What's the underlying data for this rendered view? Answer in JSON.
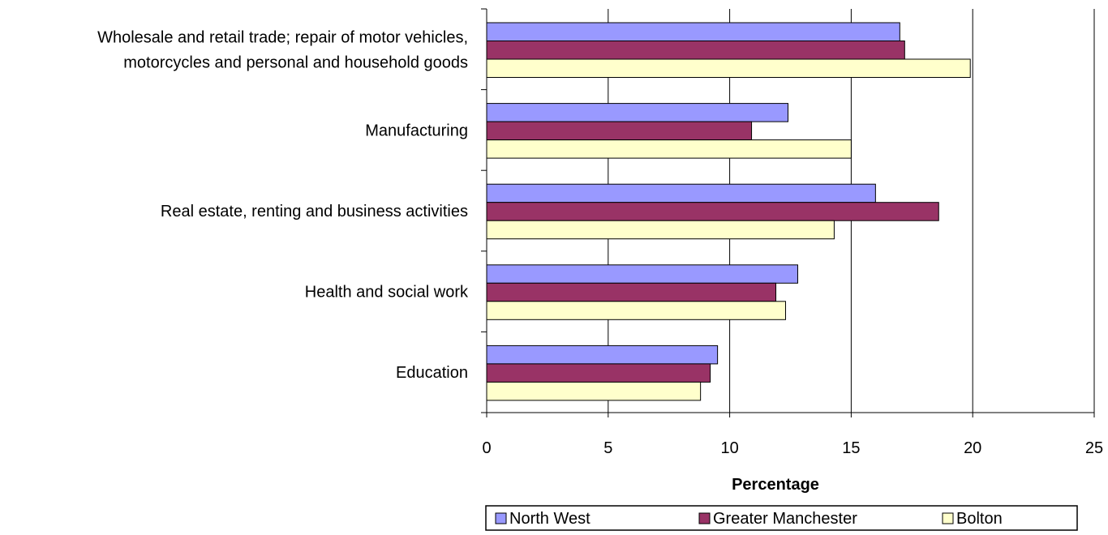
{
  "chart_data": {
    "type": "bar",
    "orientation": "horizontal",
    "categories": [
      [
        "Wholesale and retail trade; repair of motor vehicles,",
        "motorcycles and personal and household goods"
      ],
      [
        "Manufacturing"
      ],
      [
        "Real estate, renting and business activities"
      ],
      [
        "Health and social work"
      ],
      [
        "Education"
      ]
    ],
    "series": [
      {
        "name": "North West",
        "color": "#9999FF",
        "values": [
          17.0,
          12.4,
          16.0,
          12.8,
          9.5
        ]
      },
      {
        "name": "Greater Manchester",
        "color": "#993366",
        "values": [
          17.2,
          10.9,
          18.6,
          11.9,
          9.2
        ]
      },
      {
        "name": "Bolton",
        "color": "#FFFFCC",
        "values": [
          19.9,
          15.0,
          14.3,
          12.3,
          8.8
        ]
      }
    ],
    "xlabel": "Percentage",
    "ylabel": "",
    "title": "",
    "xlim": [
      0,
      25
    ],
    "xticks": [
      0,
      5,
      10,
      15,
      20,
      25
    ],
    "grid": "vertical",
    "legend_position": "bottom"
  }
}
